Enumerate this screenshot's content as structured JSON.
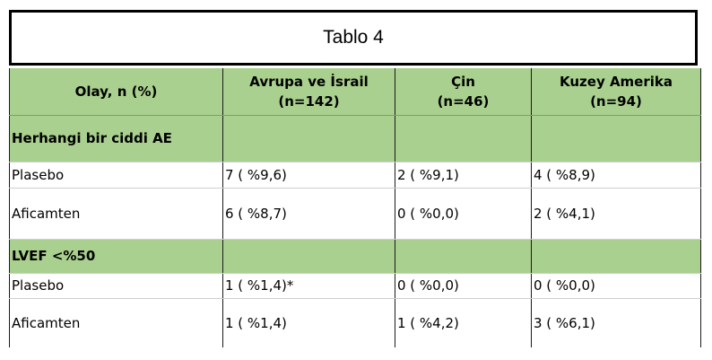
{
  "title": "Tablo 4",
  "columns": [
    {
      "line1": "Olay, n (%)",
      "line2": ""
    },
    {
      "line1": "Avrupa ve İsrail",
      "line2": "(n=142)"
    },
    {
      "line1": "Çin",
      "line2": "(n=46)"
    },
    {
      "line1": "Kuzey Amerika",
      "line2": "(n=94)"
    }
  ],
  "sections": [
    {
      "heading": "Herhangi bir ciddi AE",
      "rows": [
        {
          "label": "Plasebo",
          "cells": [
            "7 ( %9,6)",
            "2 ( %9,1)",
            "4 ( %8,9)"
          ]
        },
        {
          "label": "Aficamten",
          "cells": [
            "6 ( %8,7)",
            "0 ( %0,0)",
            "2 ( %4,1)"
          ]
        }
      ]
    },
    {
      "heading": "LVEF <%50",
      "rows": [
        {
          "label": "Plasebo",
          "cells": [
            "1 ( %1,4)*",
            "0 ( %0,0)",
            "0 ( %0,0)"
          ]
        },
        {
          "label": "Aficamten",
          "cells": [
            "1 ( %1,4)",
            "1 ( %4,2)",
            "3 ( %6,1)"
          ]
        }
      ]
    }
  ],
  "colors": {
    "header_green": "#a9d08e",
    "border": "#1a1a1a"
  }
}
